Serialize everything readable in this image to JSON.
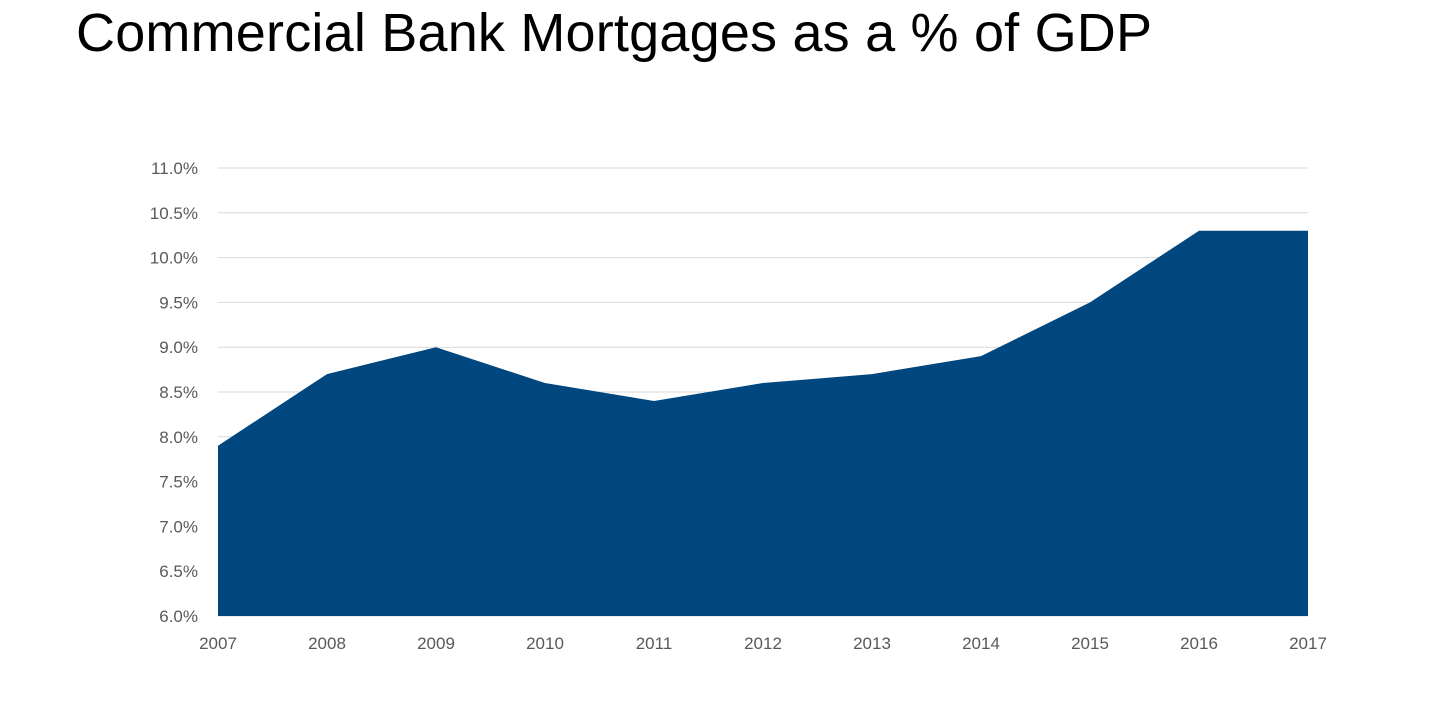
{
  "chart_data": {
    "type": "area",
    "title": "Commercial Bank Mortgages as a % of GDP",
    "xlabel": "",
    "ylabel": "",
    "categories": [
      "2007",
      "2008",
      "2009",
      "2010",
      "2011",
      "2012",
      "2013",
      "2014",
      "2015",
      "2016",
      "2017"
    ],
    "values": [
      7.9,
      8.7,
      9.0,
      8.6,
      8.4,
      8.6,
      8.7,
      8.9,
      9.5,
      10.3,
      10.3
    ],
    "ylim": [
      6.0,
      11.0
    ],
    "yticks": [
      6.0,
      6.5,
      7.0,
      7.5,
      8.0,
      8.5,
      9.0,
      9.5,
      10.0,
      10.5,
      11.0
    ],
    "ytick_labels": [
      "6.0%",
      "6.5%",
      "7.0%",
      "7.5%",
      "8.0%",
      "8.5%",
      "9.0%",
      "9.5%",
      "10.0%",
      "10.5%",
      "11.0%"
    ],
    "grid": true,
    "legend": "none",
    "fill_color": "#00467f",
    "grid_color": "#d9d9d9",
    "tick_color": "#595959"
  }
}
